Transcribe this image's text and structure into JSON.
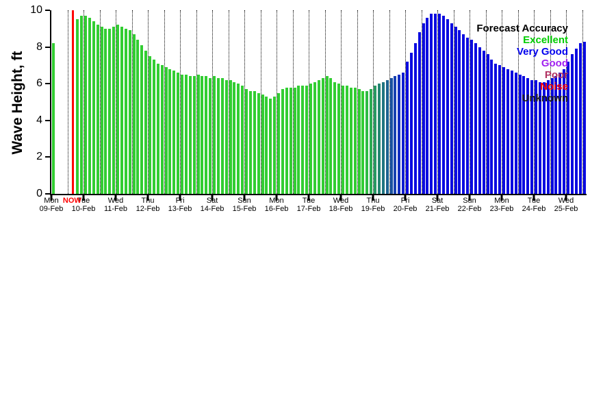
{
  "chart_data": {
    "type": "bar",
    "title": "",
    "xlabel": "",
    "ylabel": "Wave Height, ft",
    "ylim": [
      0,
      10
    ],
    "yticks": [
      0,
      2,
      4,
      6,
      8,
      10
    ],
    "grid": "vertical-dotted-every-12h",
    "bar_interval_hours": 3,
    "x_days": [
      {
        "day": "Mon",
        "date": "09-Feb"
      },
      {
        "day": "Tue",
        "date": "10-Feb"
      },
      {
        "day": "Wed",
        "date": "11-Feb"
      },
      {
        "day": "Thu",
        "date": "12-Feb"
      },
      {
        "day": "Fri",
        "date": "13-Feb"
      },
      {
        "day": "Sat",
        "date": "14-Feb"
      },
      {
        "day": "Sun",
        "date": "15-Feb"
      },
      {
        "day": "Mon",
        "date": "16-Feb"
      },
      {
        "day": "Tue",
        "date": "17-Feb"
      },
      {
        "day": "Wed",
        "date": "18-Feb"
      },
      {
        "day": "Thu",
        "date": "19-Feb"
      },
      {
        "day": "Fri",
        "date": "20-Feb"
      },
      {
        "day": "Sat",
        "date": "21-Feb"
      },
      {
        "day": "Sun",
        "date": "22-Feb"
      },
      {
        "day": "Mon",
        "date": "23-Feb"
      },
      {
        "day": "Tue",
        "date": "24-Feb"
      },
      {
        "day": "Wed",
        "date": "25-Feb"
      }
    ],
    "now_marker": {
      "label": "NOW",
      "hours_from_start": 15.5,
      "color": "#ff0000"
    },
    "legend": {
      "title": "Forecast Accuracy",
      "title_color": "#000000",
      "position": "top-right",
      "items": [
        {
          "label": "Excellent",
          "color": "#00cc00"
        },
        {
          "label": "Very Good",
          "color": "#0000ee"
        },
        {
          "label": "Good",
          "color": "#a020f0"
        },
        {
          "label": "Poor",
          "color": "#b03060"
        },
        {
          "label": "Noise",
          "color": "#ff0000"
        },
        {
          "label": "Unknown",
          "color": "#1a1a1a"
        }
      ]
    },
    "palette": {
      "E": "#32cd32",
      "b1": "#2ebb42",
      "b2": "#2baa52",
      "b3": "#279861",
      "b4": "#248671",
      "b5": "#207581",
      "b6": "#1d6391",
      "b7": "#1952a1",
      "b8": "#1640b1",
      "b9": "#122ec0",
      "b10": "#0f1dd0",
      "V": "#0b0be0"
    },
    "values": [
      8.2,
      null,
      null,
      null,
      null,
      null,
      9.5,
      9.7,
      9.7,
      9.6,
      9.4,
      9.2,
      9.1,
      9.0,
      9.0,
      9.1,
      9.2,
      9.1,
      9.0,
      8.9,
      8.7,
      8.4,
      8.1,
      7.8,
      7.5,
      7.3,
      7.1,
      7.0,
      6.9,
      6.8,
      6.7,
      6.6,
      6.5,
      6.5,
      6.4,
      6.4,
      6.5,
      6.4,
      6.4,
      6.3,
      6.4,
      6.3,
      6.3,
      6.2,
      6.2,
      6.1,
      6.0,
      5.9,
      5.7,
      5.6,
      5.6,
      5.5,
      5.4,
      5.3,
      5.2,
      5.3,
      5.5,
      5.7,
      5.8,
      5.8,
      5.8,
      5.9,
      5.9,
      5.9,
      6.0,
      6.1,
      6.2,
      6.3,
      6.4,
      6.3,
      6.1,
      6.0,
      5.9,
      5.9,
      5.8,
      5.8,
      5.7,
      5.6,
      5.6,
      5.7,
      5.9,
      6.0,
      6.1,
      6.2,
      6.3,
      6.4,
      6.5,
      6.6,
      7.2,
      7.7,
      8.2,
      8.8,
      9.3,
      9.6,
      9.8,
      9.8,
      9.8,
      9.7,
      9.5,
      9.3,
      9.1,
      8.9,
      8.7,
      8.5,
      8.4,
      8.2,
      8.0,
      7.8,
      7.6,
      7.3,
      7.1,
      7.0,
      6.9,
      6.8,
      6.7,
      6.6,
      6.5,
      6.4,
      6.3,
      6.2,
      6.2,
      6.1,
      6.1,
      6.2,
      6.3,
      6.4,
      6.6,
      6.8,
      7.2,
      7.6,
      7.9,
      8.2,
      8.3
    ],
    "colors": [
      "E",
      null,
      null,
      null,
      null,
      null,
      "E",
      "E",
      "E",
      "E",
      "E",
      "E",
      "E",
      "E",
      "E",
      "E",
      "E",
      "E",
      "E",
      "E",
      "E",
      "E",
      "E",
      "E",
      "E",
      "E",
      "E",
      "E",
      "E",
      "E",
      "E",
      "E",
      "E",
      "E",
      "E",
      "E",
      "E",
      "E",
      "E",
      "E",
      "E",
      "E",
      "E",
      "E",
      "E",
      "E",
      "E",
      "E",
      "E",
      "E",
      "E",
      "E",
      "E",
      "E",
      "E",
      "E",
      "E",
      "E",
      "E",
      "E",
      "E",
      "E",
      "E",
      "E",
      "E",
      "E",
      "E",
      "E",
      "E",
      "E",
      "E",
      "E",
      "E",
      "E",
      "E",
      "E",
      "E",
      "E",
      "b1",
      "b2",
      "b3",
      "b4",
      "b5",
      "b6",
      "b7",
      "b8",
      "b9",
      "b10",
      "V",
      "V",
      "V",
      "V",
      "V",
      "V",
      "V",
      "V",
      "V",
      "V",
      "V",
      "V",
      "V",
      "V",
      "V",
      "V",
      "V",
      "V",
      "V",
      "V",
      "V",
      "V",
      "V",
      "V",
      "V",
      "V",
      "V",
      "V",
      "V",
      "V",
      "V",
      "V",
      "V",
      "V",
      "V",
      "V",
      "V",
      "V",
      "V",
      "V",
      "V",
      "V",
      "V",
      "V",
      "V"
    ]
  }
}
